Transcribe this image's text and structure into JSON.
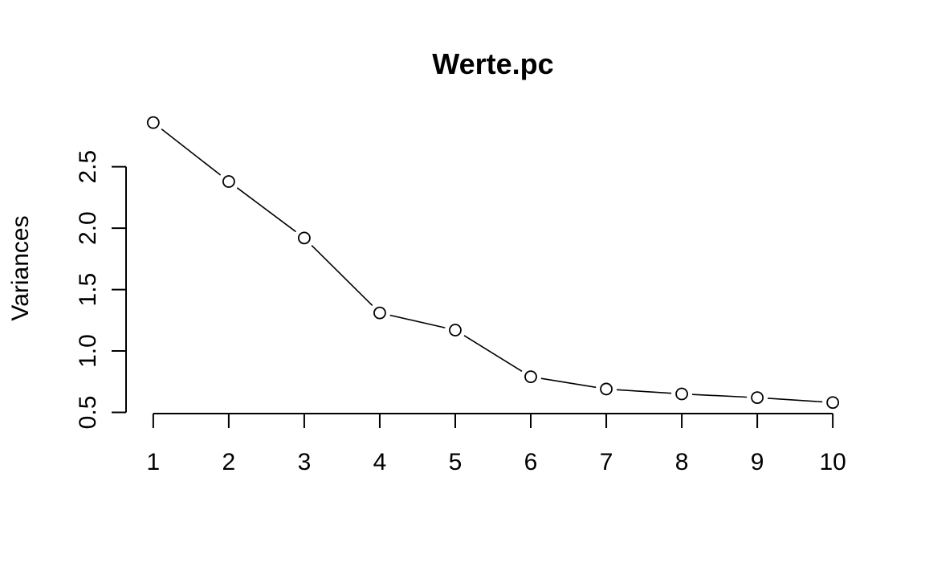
{
  "chart_data": {
    "type": "line",
    "title": "Werte.pc",
    "xlabel": "",
    "ylabel": "Variances",
    "x": [
      1,
      2,
      3,
      4,
      5,
      6,
      7,
      8,
      9,
      10
    ],
    "x_tick_labels": [
      "1",
      "2",
      "3",
      "4",
      "5",
      "6",
      "7",
      "8",
      "9",
      "10"
    ],
    "series": [
      {
        "values": [
          2.86,
          2.38,
          1.92,
          1.31,
          1.17,
          0.79,
          0.69,
          0.65,
          0.62,
          0.58
        ]
      }
    ],
    "xlim": [
      0.64,
      10.36
    ],
    "ylim": [
      0.49,
      2.91
    ],
    "y_ticks": [
      0.5,
      1.0,
      1.5,
      2.0,
      2.5
    ],
    "y_tick_labels": [
      "0.5",
      "1.0",
      "1.5",
      "2.0",
      "2.5"
    ],
    "grid": false,
    "legend": "none",
    "markers": "open-circle",
    "line_color": "#000000"
  }
}
